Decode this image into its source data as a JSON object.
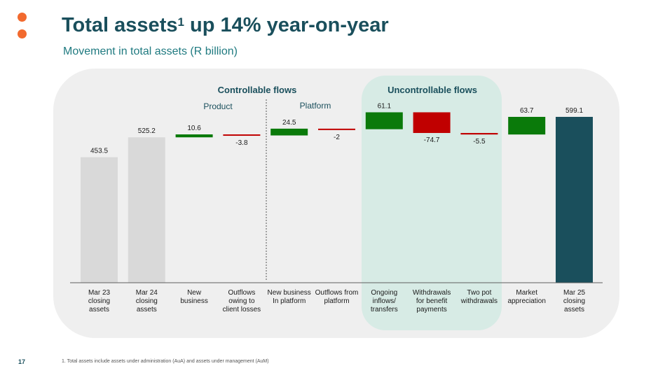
{
  "header": {
    "title": "Total assets",
    "title_sup": "1",
    "title_rest": " up 14% year-on-year",
    "subtitle": "Movement in total assets (R billion)"
  },
  "groups": {
    "controllable": "Controllable flows",
    "uncontrollable": "Uncontrollable flows",
    "product": "Product",
    "platform": "Platform"
  },
  "footer": {
    "page_number": "17",
    "footnote": "1. Total assets include assets under administration (AuA) and assets under management (AuM)"
  },
  "colors": {
    "total_bar": "#d9d9d9",
    "final_bar": "#1a4f5c",
    "increase": "#0a7a0a",
    "decrease": "#c00000",
    "accent_dot": "#f26a2e"
  },
  "chart_data": {
    "type": "bar",
    "subtype": "waterfall",
    "title": "Movement in total assets (R billion)",
    "categories": [
      "Mar 23 closing assets",
      "Mar 24 closing assets",
      "New business",
      "Outflows owing to client losses",
      "New business In platform",
      "Outflows from platform",
      "Ongoing inflows/ transfers",
      "Withdrawals for benefit payments",
      "Two pot withdrawals",
      "Market appreciation",
      "Mar 25 closing assets"
    ],
    "category_lines": [
      [
        "Mar 23",
        "closing",
        "assets"
      ],
      [
        "Mar 24",
        "closing",
        "assets"
      ],
      [
        "New",
        "business"
      ],
      [
        "Outflows",
        "owing to",
        "client losses"
      ],
      [
        "New business",
        "In platform"
      ],
      [
        "Outflows from",
        "platform"
      ],
      [
        "Ongoing",
        "inflows/",
        "transfers"
      ],
      [
        "Withdrawals",
        "for benefit",
        "payments"
      ],
      [
        "Two pot",
        "withdrawals"
      ],
      [
        "Market",
        "appreciation"
      ],
      [
        "Mar 25",
        "closing",
        "assets"
      ]
    ],
    "values": [
      453.5,
      525.2,
      10.6,
      -3.8,
      24.5,
      -2,
      61.1,
      -74.7,
      -5.5,
      63.7,
      599.1
    ],
    "value_labels": [
      "453.5",
      "525.2",
      "10.6",
      "-3.8",
      "24.5",
      "-2",
      "61.1",
      "-74.7",
      "-5.5",
      "63.7",
      "599.1"
    ],
    "measure": [
      "total",
      "total",
      "relative",
      "relative",
      "relative",
      "relative",
      "relative",
      "relative",
      "relative",
      "relative",
      "total"
    ],
    "ylim": [
      0,
      620
    ],
    "grid": false,
    "legend": "none"
  }
}
